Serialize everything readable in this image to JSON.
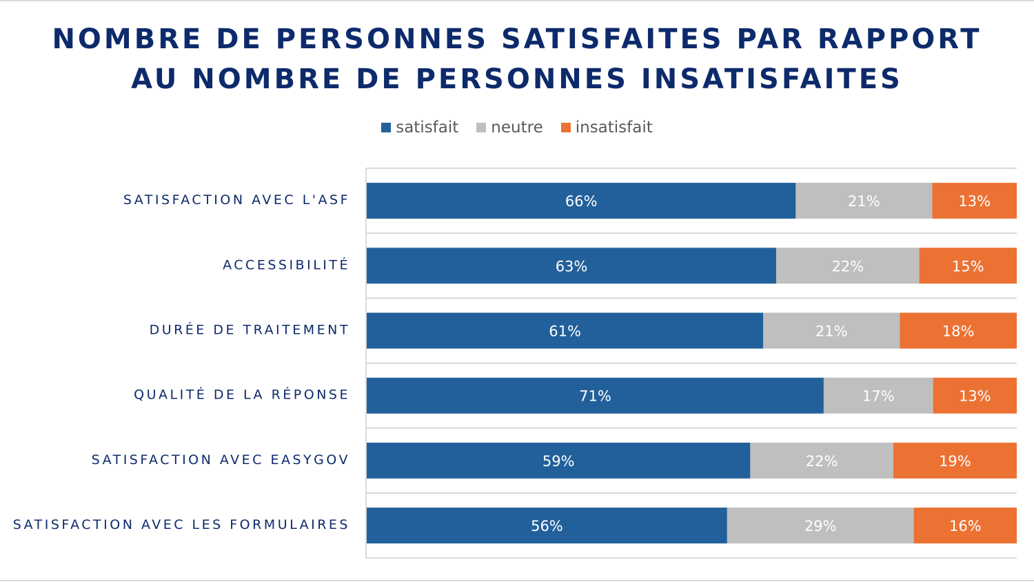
{
  "chart_data": {
    "type": "bar",
    "orientation": "horizontal",
    "stacked": "100%",
    "title": "NOMBRE DE PERSONNES SATISFAITES PAR RAPPORT AU NOMBRE DE PERSONNES INSATISFAITES",
    "title_lines": [
      "NOMBRE DE PERSONNES SATISFAITES PAR RAPPORT",
      "AU NOMBRE DE PERSONNES INSATISFAITES"
    ],
    "legend_position": "top",
    "grid": true,
    "categories": [
      "SATISFACTION AVEC L'ASF",
      "ACCESSIBILITÉ",
      "DURÉE DE TRAITEMENT",
      "QUALITÉ DE LA RÉPONSE",
      "SATISFACTION AVEC EASYGOV",
      "SATISFACTION AVEC LES FORMULAIRES"
    ],
    "series": [
      {
        "name": "satisfait",
        "color": "#22609b",
        "values": [
          66,
          63,
          61,
          71,
          59,
          56
        ]
      },
      {
        "name": "neutre",
        "color": "#bfbfbf",
        "values": [
          21,
          22,
          21,
          17,
          22,
          29
        ]
      },
      {
        "name": "insatisfait",
        "color": "#eb7233",
        "values": [
          13,
          15,
          18,
          13,
          19,
          16
        ]
      }
    ],
    "value_suffix": "%"
  }
}
